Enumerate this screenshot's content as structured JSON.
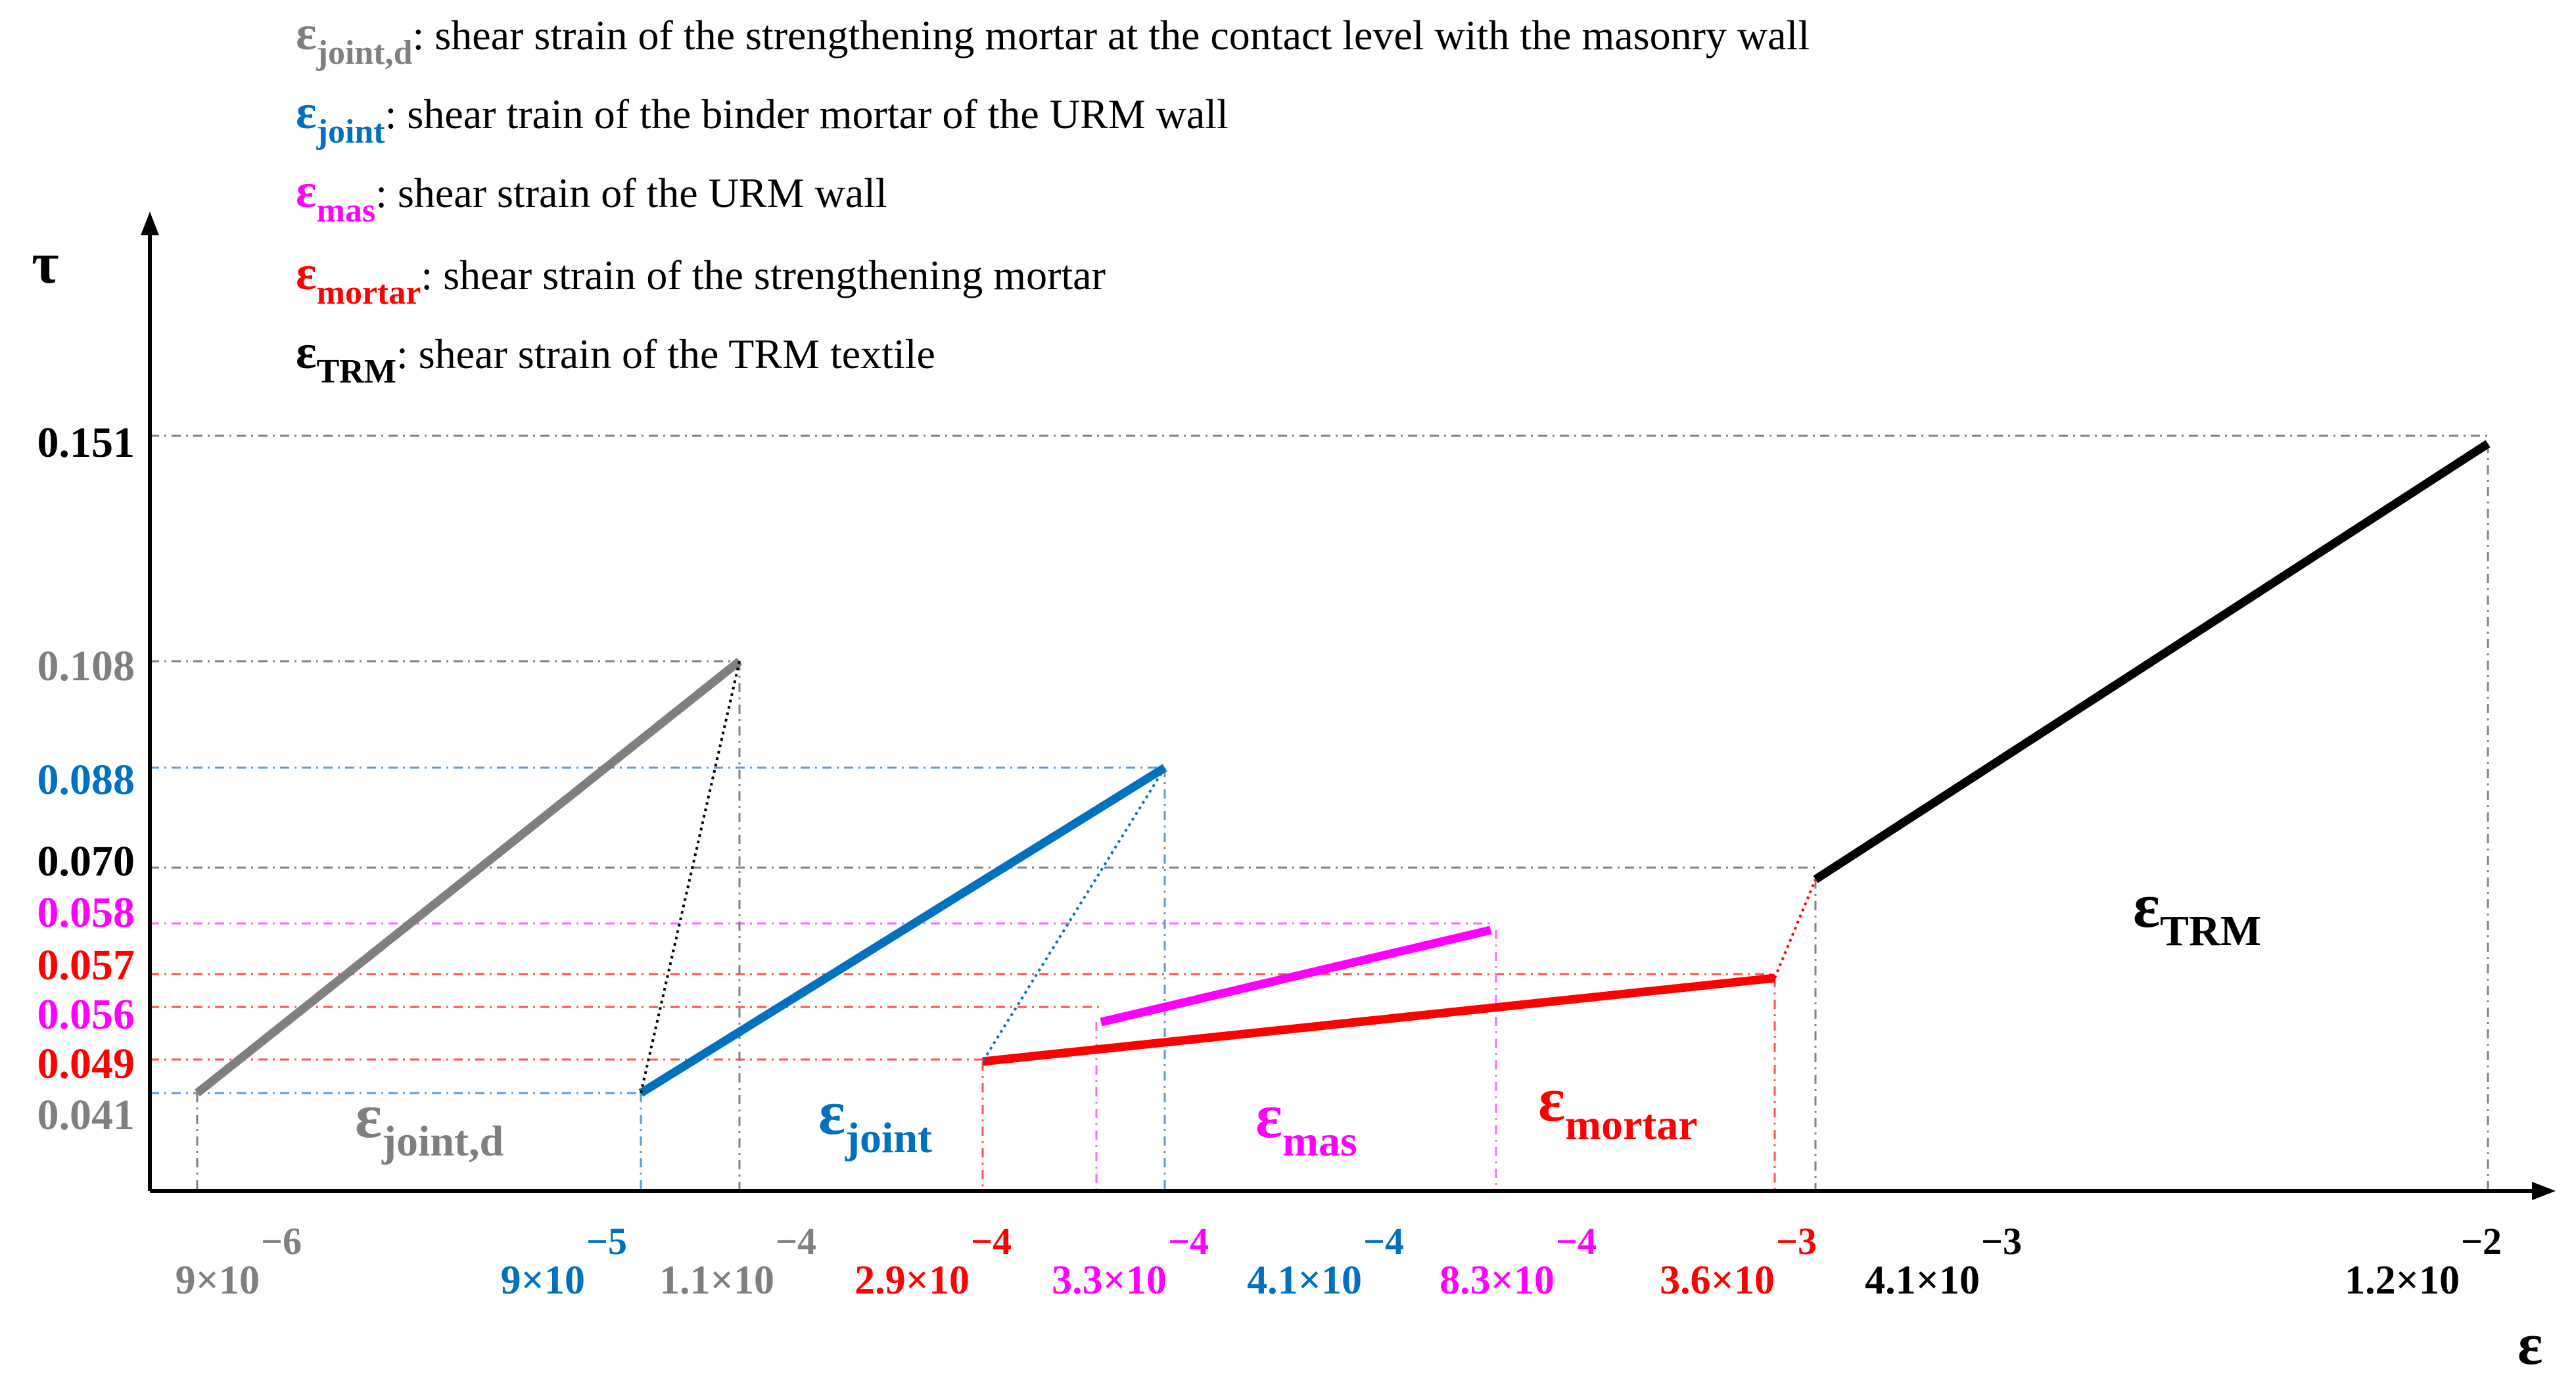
{
  "chart_data": {
    "type": "line",
    "title": "",
    "xlabel": "ε",
    "ylabel": "τ",
    "grid": false,
    "legend_placement": "top-left",
    "legend": [
      {
        "symbol": "ε",
        "sub": "joint,d",
        "text": ": shear strain of the strengthening mortar at the contact level with the masonry wall",
        "color": "#7f7f7f"
      },
      {
        "symbol": "ε",
        "sub": "joint",
        "text": ": shear train of the binder mortar of the URM wall",
        "color": "#0070c0"
      },
      {
        "symbol": "ε",
        "sub": "mas",
        "text": ": shear strain of the URM wall",
        "color": "#ff00ff"
      },
      {
        "symbol": "ε",
        "sub": "mortar",
        "text": ": shear strain of the strengthening mortar",
        "color": "#ff0000"
      },
      {
        "symbol": "ε",
        "sub": "TRM",
        "text": ": shear strain of the TRM textile",
        "color": "#000000"
      }
    ],
    "y_ticks": [
      {
        "label": "0.151",
        "value": 0.151,
        "color": "#000000"
      },
      {
        "label": "0.108",
        "value": 0.108,
        "color": "#7f7f7f"
      },
      {
        "label": "0.088",
        "value": 0.088,
        "color": "#0070c0"
      },
      {
        "label": "0.070",
        "value": 0.07,
        "color": "#000000"
      },
      {
        "label": "0.058",
        "value": 0.058,
        "color": "#ff00ff"
      },
      {
        "label": "0.057",
        "value": 0.057,
        "color": "#ff0000"
      },
      {
        "label": "0.056",
        "value": 0.056,
        "color": "#ff00ff"
      },
      {
        "label": "0.049",
        "value": 0.049,
        "color": "#ff0000"
      },
      {
        "label": "0.041",
        "value": 0.041,
        "color": "#7f7f7f"
      }
    ],
    "x_ticks": [
      {
        "mantissa": "9×10",
        "exp": "−6",
        "value": 9e-06,
        "color": "#7f7f7f"
      },
      {
        "mantissa": "9×10",
        "exp": "−5",
        "value": 9e-05,
        "color": "#0070c0"
      },
      {
        "mantissa": "1.1×10",
        "exp": "−4",
        "value": 0.00011,
        "color": "#7f7f7f"
      },
      {
        "mantissa": "2.9×10",
        "exp": "−4",
        "value": 0.00029,
        "color": "#ff0000"
      },
      {
        "mantissa": "3.3×10",
        "exp": "−4",
        "value": 0.00033,
        "color": "#ff00ff"
      },
      {
        "mantissa": "4.1×10",
        "exp": "−4",
        "value": 0.00041,
        "color": "#0070c0"
      },
      {
        "mantissa": "8.3×10",
        "exp": "−4",
        "value": 0.00083,
        "color": "#ff00ff"
      },
      {
        "mantissa": "3.6×10",
        "exp": "−3",
        "value": 0.0036,
        "color": "#ff0000"
      },
      {
        "mantissa": "4.1×10",
        "exp": "−3",
        "value": 0.0041,
        "color": "#000000"
      },
      {
        "mantissa": "1.2×10",
        "exp": "−2",
        "value": 0.012,
        "color": "#000000"
      }
    ],
    "series": [
      {
        "label_symbol": "ε",
        "label_sub": "joint,d",
        "color": "#7f7f7f",
        "x": [
          9e-06,
          0.00011
        ],
        "y": [
          0.041,
          0.108
        ]
      },
      {
        "label_symbol": "ε",
        "label_sub": "joint",
        "color": "#0070c0",
        "x": [
          9e-05,
          0.00041
        ],
        "y": [
          0.041,
          0.088
        ]
      },
      {
        "label_symbol": "ε",
        "label_sub": "mas",
        "color": "#ff00ff",
        "x": [
          0.00033,
          0.00083
        ],
        "y": [
          0.056,
          0.058
        ]
      },
      {
        "label_symbol": "ε",
        "label_sub": "mortar",
        "color": "#ff0000",
        "x": [
          0.00029,
          0.0036
        ],
        "y": [
          0.049,
          0.057
        ]
      },
      {
        "label_symbol": "ε",
        "label_sub": "TRM",
        "color": "#000000",
        "x": [
          0.0041,
          0.012
        ],
        "y": [
          0.07,
          0.151
        ]
      }
    ],
    "transitions": [
      {
        "color": "#000000",
        "from_series": 0,
        "to_series": 1
      },
      {
        "color": "#0070c0",
        "from_series": 1,
        "to_series": 3
      },
      {
        "color": "#ff0000",
        "from_series": 3,
        "to_series": 4
      }
    ]
  }
}
